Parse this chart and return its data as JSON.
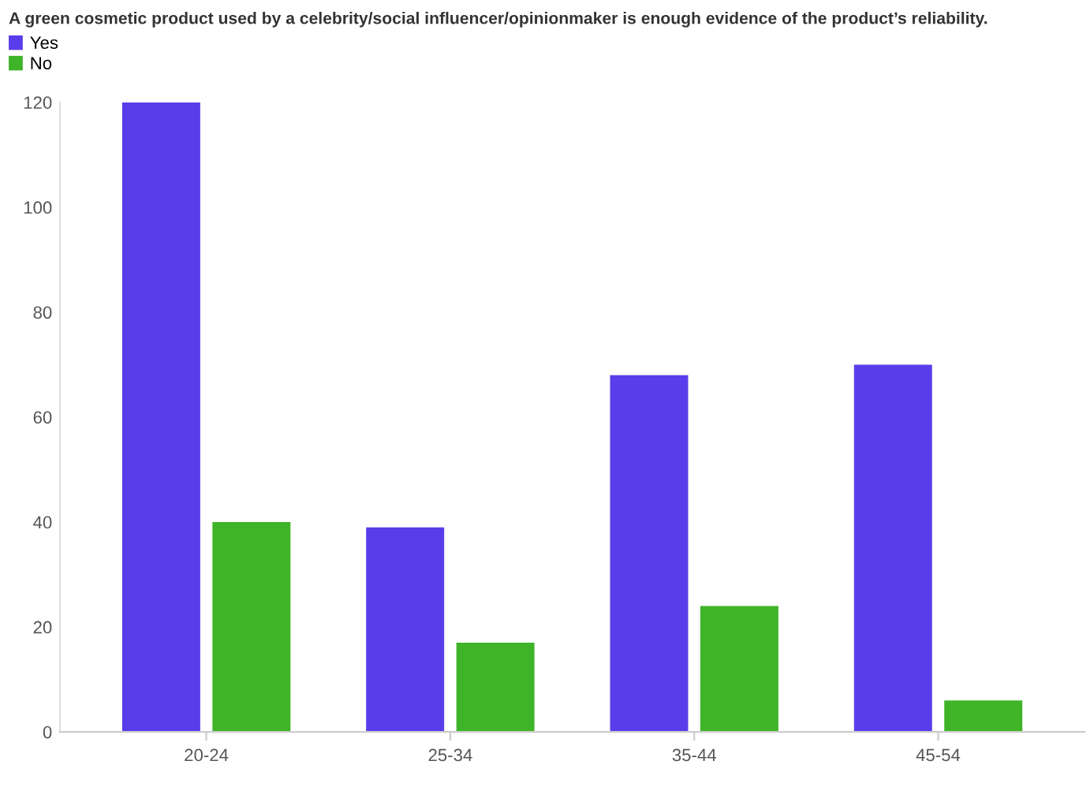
{
  "chart_data": {
    "type": "bar",
    "title": "A green cosmetic product used by a celebrity/social influencer/opinionmaker is enough evidence of the product’s reliability.",
    "categories": [
      "20-24",
      "25-34",
      "35-44",
      "45-54"
    ],
    "series": [
      {
        "name": "Yes",
        "color": "#5a3dea",
        "values": [
          120,
          39,
          68,
          70
        ]
      },
      {
        "name": "No",
        "color": "#3fb428",
        "values": [
          40,
          17,
          24,
          6
        ]
      }
    ],
    "ylim": [
      0,
      120
    ],
    "yticks": [
      0,
      20,
      40,
      60,
      80,
      100,
      120
    ],
    "grid": false,
    "legend": "top left"
  }
}
